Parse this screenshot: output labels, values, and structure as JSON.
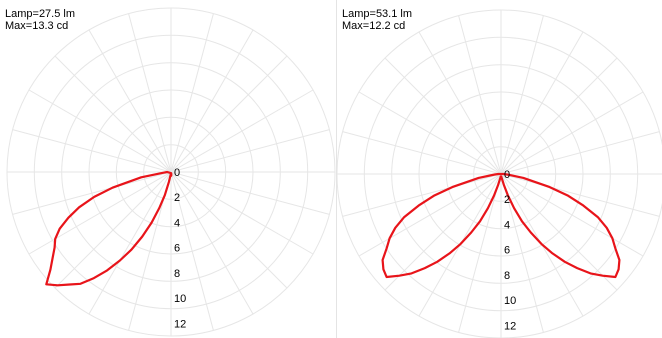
{
  "chart_data": [
    {
      "type": "polar",
      "lamp_label": "Lamp=27.5 lm",
      "max_label": "Max=13.3 cd",
      "radial_unit": "cd",
      "rlim": [
        0,
        13
      ],
      "radial_ticks": [
        "0",
        "2",
        "4",
        "6",
        "8",
        "10",
        "12"
      ],
      "grid": true,
      "line_color": "#e8141a",
      "series": [
        {
          "angles_deg": [
            -90,
            -85,
            -80,
            -75,
            -72,
            -69,
            -66,
            -63,
            -60,
            -57,
            -54,
            -51,
            -48,
            -45,
            -42,
            -39,
            -36,
            -33,
            -30,
            -27,
            -24,
            -21,
            -18,
            -15,
            -12,
            -9,
            -6,
            -3,
            0,
            3,
            6,
            9
          ],
          "values": [
            0.3,
            0.6,
            2.4,
            4.8,
            6.4,
            7.8,
            8.9,
            9.9,
            10.6,
            11.0,
            11.6,
            12.3,
            13.3,
            12.7,
            12.0,
            11.4,
            10.4,
            9.3,
            8.1,
            6.9,
            5.6,
            4.3,
            3.0,
            1.9,
            0.8,
            0.3,
            0.2,
            0.3,
            0.3,
            0.3,
            0.2,
            0.1
          ]
        }
      ]
    },
    {
      "type": "polar",
      "lamp_label": "Lamp=53.1 lm",
      "max_label": "Max=12.2 cd",
      "radial_unit": "cd",
      "rlim": [
        0,
        13
      ],
      "radial_ticks": [
        "0",
        "2",
        "4",
        "6",
        "8",
        "10",
        "12"
      ],
      "grid": true,
      "line_color": "#e8141a",
      "series": [
        {
          "angles_deg": [
            -90,
            -85,
            -80,
            -75,
            -72,
            -69,
            -66,
            -63,
            -60,
            -57,
            -54,
            -51,
            -48,
            -45,
            -42,
            -39,
            -36,
            -33,
            -30,
            -27,
            -24,
            -21,
            -18,
            -15,
            -12,
            -9,
            -6,
            -3,
            0,
            3,
            6,
            9,
            12,
            15,
            18,
            21,
            24,
            27,
            30,
            33,
            36,
            39,
            42,
            45,
            48,
            51,
            54,
            57,
            60,
            63,
            66,
            69,
            72,
            75,
            80,
            85,
            90
          ],
          "values": [
            0.2,
            0.5,
            1.8,
            4.0,
            5.6,
            7.0,
            8.4,
            9.4,
            10.2,
            10.8,
            11.6,
            12.0,
            12.2,
            11.4,
            10.6,
            9.6,
            8.6,
            7.5,
            6.4,
            5.2,
            4.1,
            2.9,
            1.8,
            0.9,
            0.4,
            0.3,
            0.2,
            0.2,
            0.2,
            0.2,
            0.2,
            0.3,
            0.4,
            0.9,
            1.8,
            2.9,
            4.1,
            5.2,
            6.4,
            7.5,
            8.6,
            9.6,
            10.6,
            11.4,
            12.2,
            12.0,
            11.6,
            10.8,
            10.2,
            9.4,
            8.4,
            7.0,
            5.6,
            4.0,
            1.8,
            0.5,
            0.2
          ]
        }
      ]
    }
  ]
}
